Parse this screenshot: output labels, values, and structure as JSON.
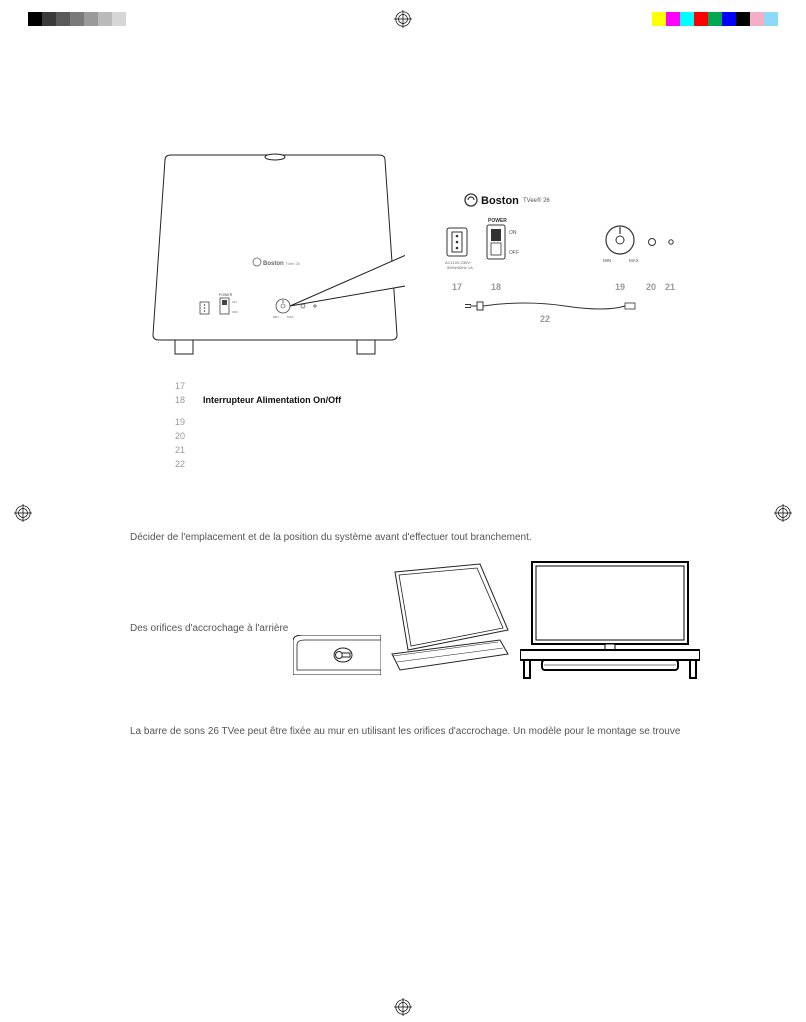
{
  "colorBarLeft": [
    "#000000",
    "#3a3a3a",
    "#5a5a5a",
    "#7a7a7a",
    "#9a9a9a",
    "#bababa",
    "#d6d6d6"
  ],
  "colorBarRight": [
    "#ffff00",
    "#ff00ff",
    "#00ffff",
    "#ff0000",
    "#00a651",
    "#0000ff",
    "#000000",
    "#f7adc6",
    "#8ed8f8"
  ],
  "brand": "Boston",
  "model": "TVee® 26",
  "panelLabels": {
    "power": "POWER",
    "on": "ON",
    "off": "OFF",
    "ac": "AC110V-230V~\n50Hz/60Hz 1A",
    "min": "MIN",
    "max": "MAX",
    "n17": "17",
    "n18": "18",
    "n19": "19",
    "n20": "20",
    "n21": "21",
    "n22": "22"
  },
  "subwooferLabel": {
    "power": "POWER",
    "on": "ON",
    "off": "OFF",
    "min": "MIN",
    "max": "MAX"
  },
  "legend": {
    "n17": "17",
    "n18": "18",
    "item18": "Interrupteur Alimentation On/Off",
    "n19": "19",
    "n20": "20",
    "n21": "21",
    "n22": "22"
  },
  "text": {
    "decider": "Décider de l'emplacement et de la position du système avant d'effectuer tout branchement.",
    "orifices": "Des orifices d'accrochage à l'arrière",
    "barre": "La barre de sons 26 TVee peut être fixée au mur en utilisant les orifices d'accrochage. Un modèle pour le montage se trouve"
  }
}
